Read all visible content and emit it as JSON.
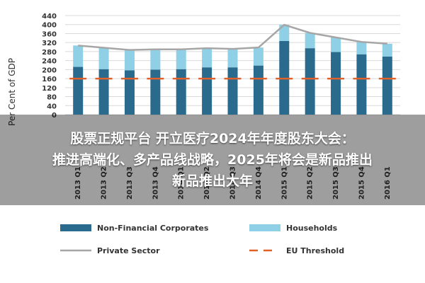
{
  "overlay": {
    "lines": [
      "股票正规平台 开立医疗2024年年度股东大会：",
      "推进高端化、多产品线战略，2025年将会是新品推出",
      "新品推出大年"
    ]
  },
  "chart_data": {
    "type": "bar",
    "ylabel": "Per Cent of GDP",
    "ylim": [
      0,
      440
    ],
    "yticks": [
      0,
      40,
      80,
      120,
      160,
      200,
      240,
      280,
      320,
      360,
      400,
      440
    ],
    "categories": [
      "2013 Q1",
      "2013 Q2",
      "2013 Q3",
      "2013 Q4",
      "2014 Q1",
      "2014 Q2",
      "2014 Q3",
      "2014 Q4",
      "2015 Q1",
      "2015 Q2",
      "2015 Q3",
      "2015 Q4",
      "2016 Q1"
    ],
    "series": [
      {
        "name": "Non-Financial Corporates",
        "kind": "bar-stack",
        "color": "#2a6a8c",
        "values": [
          212,
          202,
          197,
          200,
          202,
          210,
          210,
          218,
          327,
          295,
          278,
          268,
          258
        ]
      },
      {
        "name": "Households",
        "kind": "bar-stack",
        "color": "#8fd0e6",
        "values": [
          95,
          95,
          90,
          90,
          88,
          85,
          82,
          80,
          72,
          68,
          65,
          55,
          57
        ]
      },
      {
        "name": "Private Sector",
        "kind": "line",
        "color": "#a6a6a6",
        "values": [
          307,
          297,
          287,
          290,
          290,
          295,
          292,
          298,
          399,
          363,
          343,
          323,
          315
        ]
      },
      {
        "name": "EU Threshold",
        "kind": "dash",
        "color": "#e0622a",
        "values": [
          160,
          160,
          160,
          160,
          160,
          160,
          160,
          160,
          160,
          160,
          160,
          160,
          160
        ]
      }
    ],
    "legend": "bottom",
    "grid": true
  }
}
